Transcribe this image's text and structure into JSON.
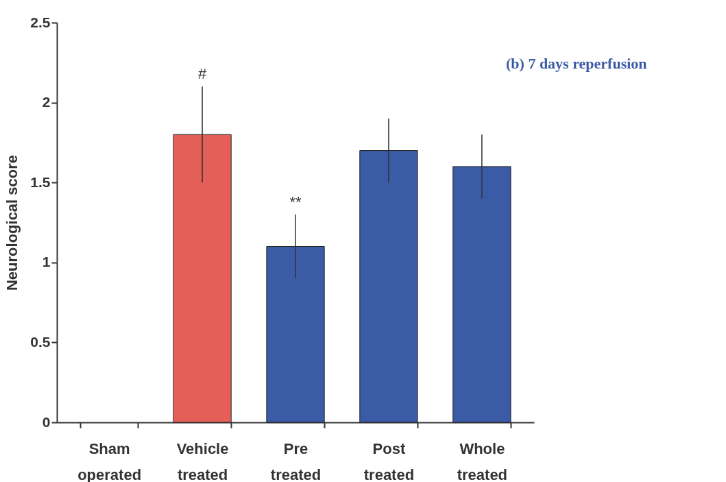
{
  "chart_data": {
    "type": "bar",
    "title": "(b) 7 days reperfusion",
    "ylabel": "Neurological score",
    "categories": [
      "Sham operated",
      "Vehicle treated",
      "Pre treated",
      "Post treated",
      "Whole treated"
    ],
    "values": [
      0,
      1.8,
      1.1,
      1.7,
      1.6
    ],
    "colors": [
      "#3b5ba6",
      "#e45f57",
      "#3b5ba6",
      "#3b5ba6",
      "#3b5ba6"
    ],
    "errors": [
      null,
      0.3,
      0.2,
      0.2,
      0.2
    ],
    "ylim": [
      0,
      2.5
    ],
    "yticks": [
      0,
      0.5,
      1,
      1.5,
      2,
      2.5
    ],
    "annotations": [
      {
        "text": "#",
        "x": "Vehicle treated",
        "y": 2.1
      },
      {
        "text": "**",
        "x": "Pre treated",
        "y": 1.3
      }
    ]
  }
}
